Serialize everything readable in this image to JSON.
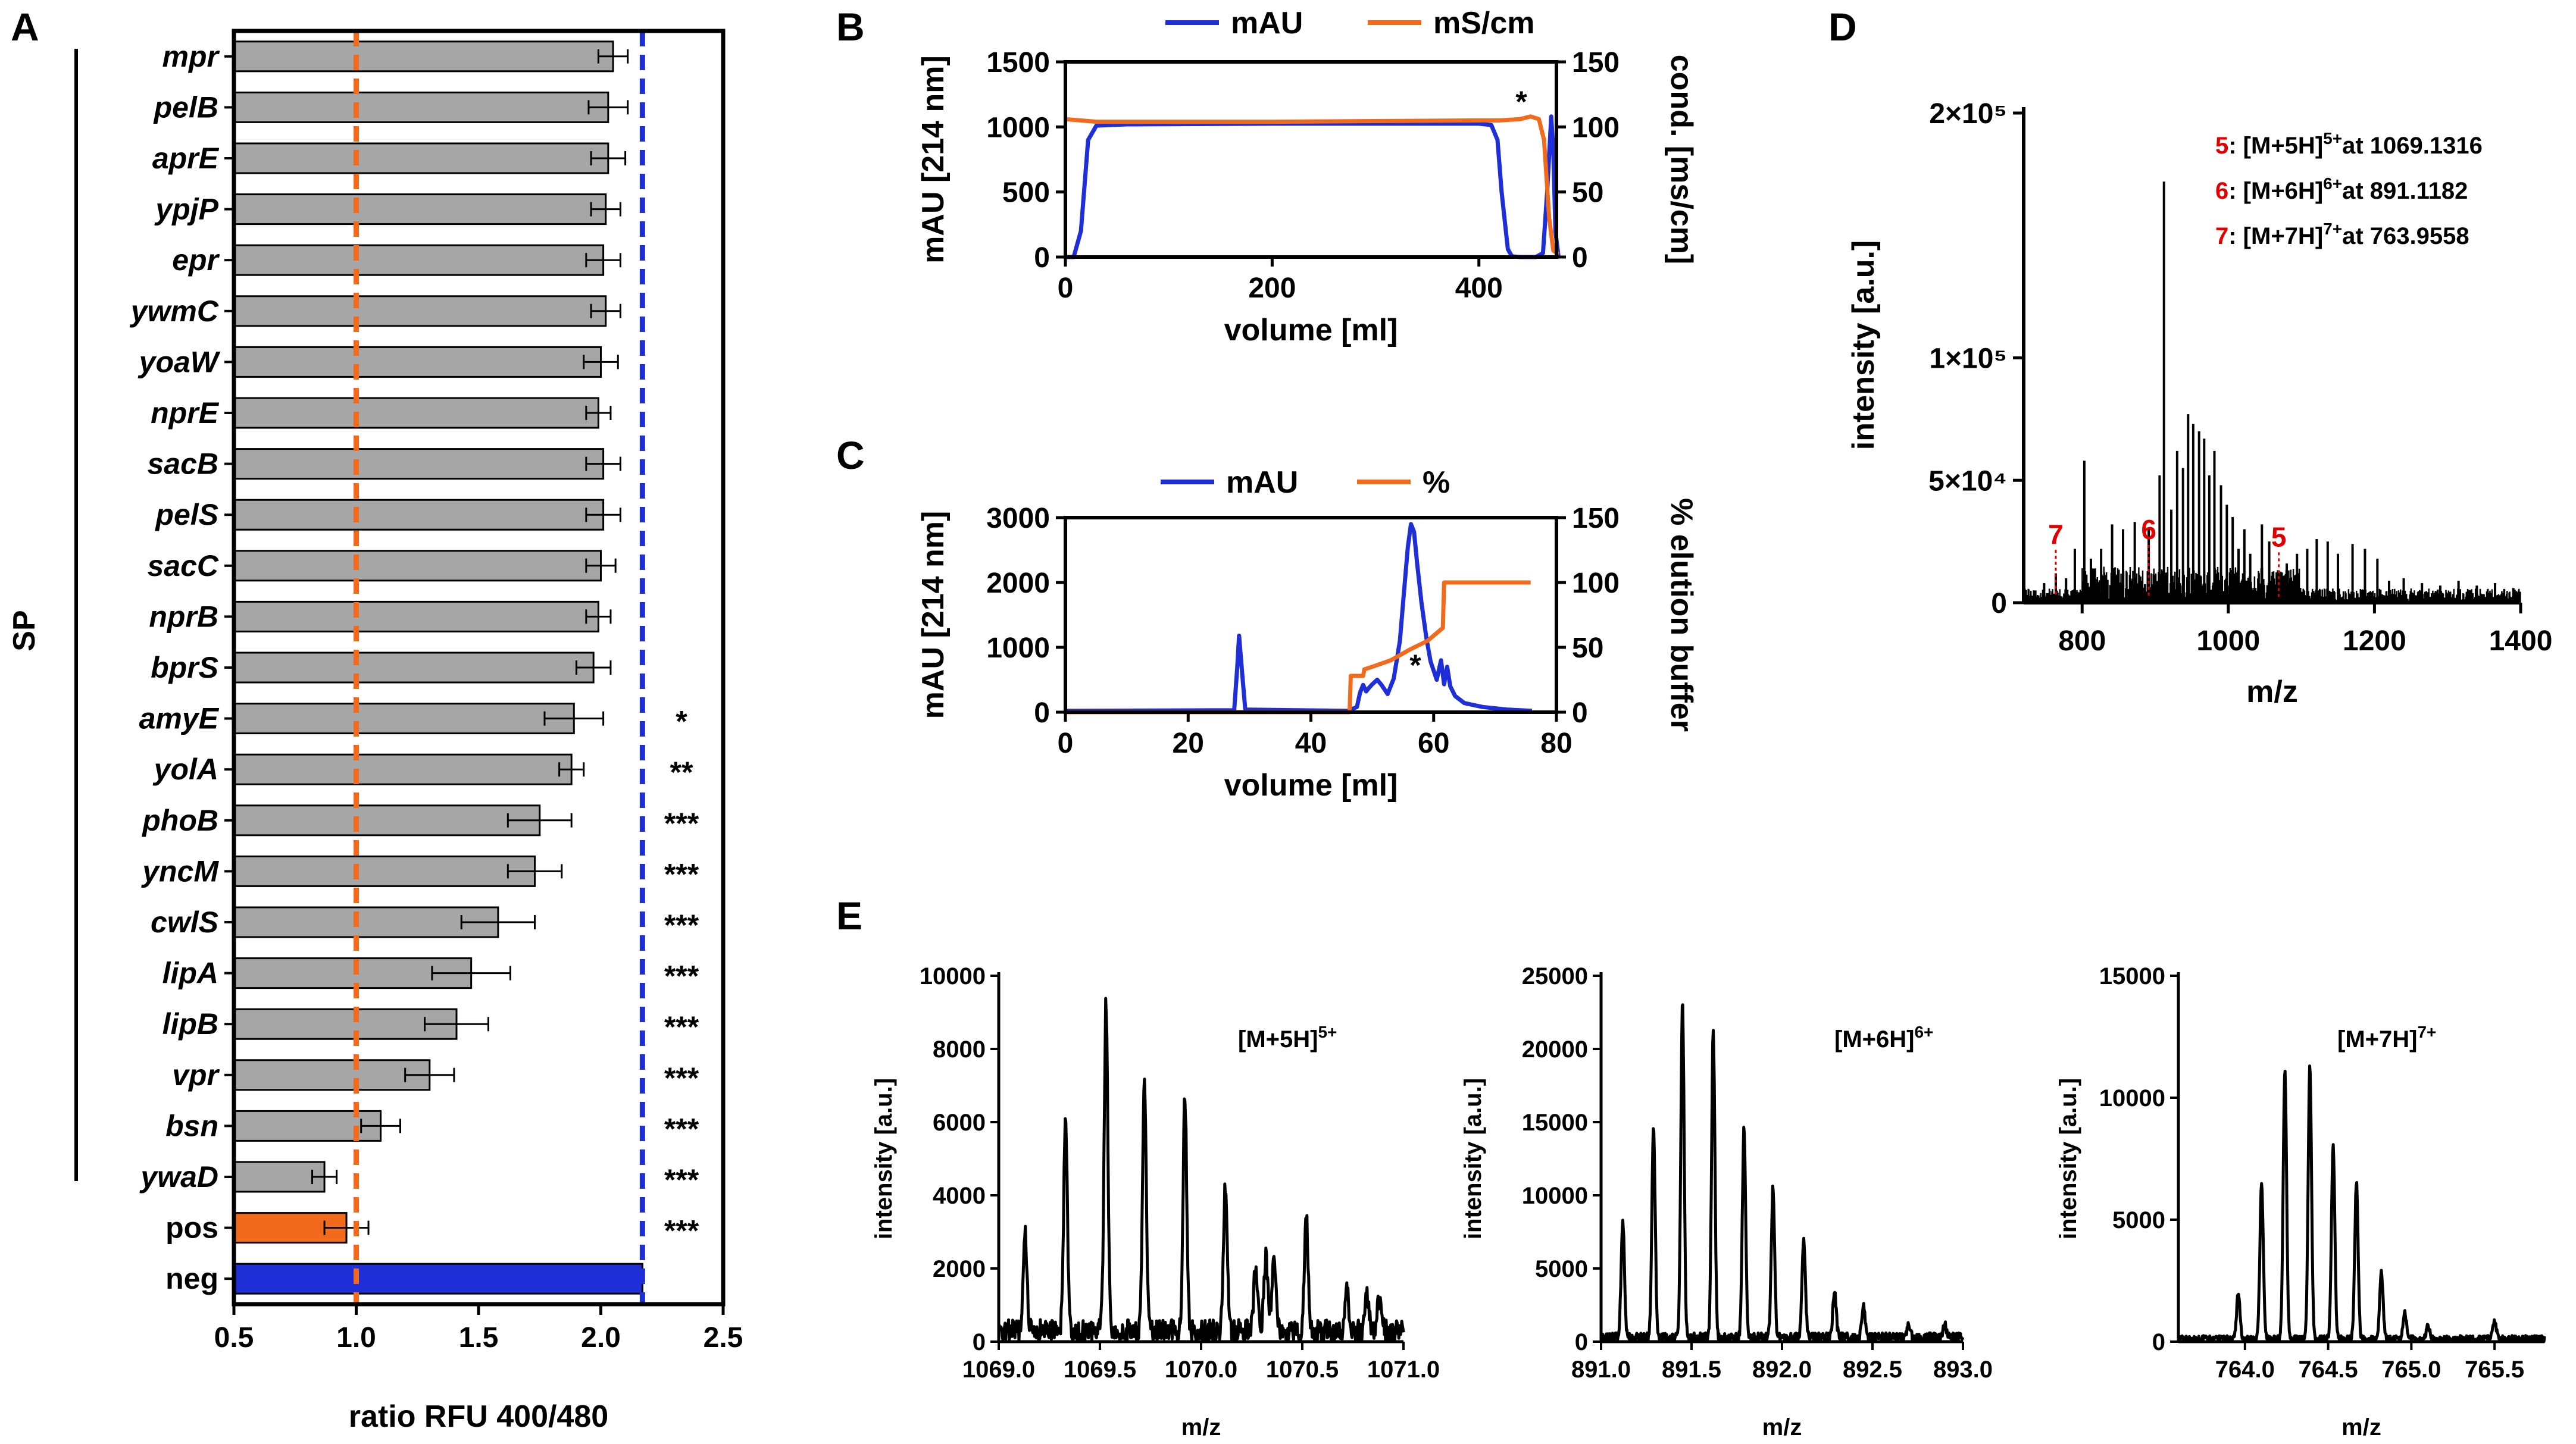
{
  "colors": {
    "grey": "#a6a6a6",
    "orange": "#f26b1d",
    "blue": "#1f2fd8",
    "red": "#e00000",
    "black": "#000000"
  },
  "panel_labels": [
    "A",
    "B",
    "C",
    "D",
    "E"
  ],
  "chart_data": [
    {
      "id": "A",
      "type": "bar",
      "orientation": "horizontal",
      "group_label": "SP",
      "xlabel": "ratio RFU 400/480",
      "xlim": [
        0.5,
        2.5
      ],
      "xticks": [
        "0.5",
        "1.0",
        "1.5",
        "2.0",
        "2.5"
      ],
      "categories": [
        "mpr",
        "pelB",
        "aprE",
        "ypjP",
        "epr",
        "ywmC",
        "yoaW",
        "nprE",
        "sacB",
        "pelS",
        "sacC",
        "nprB",
        "bprS",
        "amyE",
        "yolA",
        "phoB",
        "yncM",
        "cwlS",
        "lipA",
        "lipB",
        "vpr",
        "bsn",
        "ywaD",
        "pos",
        "neg"
      ],
      "values": [
        2.05,
        2.03,
        2.03,
        2.02,
        2.01,
        2.02,
        2.0,
        1.99,
        2.01,
        2.01,
        2.0,
        1.99,
        1.97,
        1.89,
        1.88,
        1.75,
        1.73,
        1.58,
        1.47,
        1.41,
        1.3,
        1.1,
        0.87,
        0.96,
        2.17
      ],
      "errors": [
        0.06,
        0.08,
        0.07,
        0.06,
        0.07,
        0.06,
        0.07,
        0.05,
        0.07,
        0.07,
        0.06,
        0.05,
        0.07,
        0.12,
        0.05,
        0.13,
        0.11,
        0.15,
        0.16,
        0.13,
        0.1,
        0.08,
        0.05,
        0.09,
        0.0
      ],
      "significance": [
        "",
        "",
        "",
        "",
        "",
        "",
        "",
        "",
        "",
        "",
        "",
        "",
        "",
        "*",
        "**",
        "***",
        "***",
        "***",
        "***",
        "***",
        "***",
        "***",
        "***",
        "***",
        ""
      ],
      "bar_colors": {
        "default": "grey",
        "pos": "orange",
        "neg": "blue"
      },
      "reference_lines": [
        {
          "value": 1.0,
          "color": "orange",
          "style": "dashed"
        },
        {
          "value": 2.17,
          "color": "blue",
          "style": "dashed"
        }
      ]
    },
    {
      "id": "B",
      "type": "line",
      "xlabel": "volume [ml]",
      "ylabel": "mAU [214 nm]",
      "y2label": "cond. [ms/cm]",
      "xlim": [
        0,
        475
      ],
      "ylim": [
        0,
        1500
      ],
      "y2lim": [
        0,
        150
      ],
      "xticks": [
        "0",
        "200",
        "400"
      ],
      "yticks": [
        "0",
        "500",
        "1000",
        "1500"
      ],
      "y2ticks": [
        "0",
        "50",
        "100",
        "150"
      ],
      "annotation": "*",
      "series": [
        {
          "name": "mAU",
          "color": "blue",
          "axis": "left",
          "x": [
            0,
            8,
            15,
            22,
            30,
            60,
            200,
            400,
            412,
            418,
            422,
            428,
            432,
            440,
            455,
            462,
            466,
            470,
            472,
            474,
            477
          ],
          "y": [
            0,
            0,
            200,
            900,
            1010,
            1020,
            1025,
            1025,
            1015,
            900,
            500,
            60,
            5,
            0,
            0,
            30,
            500,
            1080,
            800,
            200,
            0
          ]
        },
        {
          "name": "mS/cm",
          "color": "orange",
          "axis": "right",
          "x": [
            0,
            30,
            200,
            400,
            420,
            440,
            450,
            458,
            463,
            468,
            472,
            477
          ],
          "y": [
            106,
            104,
            104,
            105,
            105,
            106,
            108,
            106,
            90,
            30,
            5,
            2
          ]
        }
      ]
    },
    {
      "id": "C",
      "type": "line",
      "xlabel": "volume [ml]",
      "ylabel": "mAU [214 nm]",
      "y2label": "% elution buffer",
      "xlim": [
        0,
        80
      ],
      "ylim": [
        0,
        3000
      ],
      "y2lim": [
        0,
        150
      ],
      "xticks": [
        "0",
        "20",
        "40",
        "60",
        "80"
      ],
      "yticks": [
        "0",
        "1000",
        "2000",
        "3000"
      ],
      "y2ticks": [
        "0",
        "50",
        "100",
        "150"
      ],
      "annotation": "*",
      "series": [
        {
          "name": "mAU",
          "color": "blue",
          "axis": "left",
          "x": [
            0,
            27.5,
            28,
            28.3,
            28.8,
            29.3,
            46,
            47.5,
            48,
            48.5,
            49,
            49.5,
            50,
            50.8,
            51.5,
            52.5,
            53.5,
            54.5,
            55.2,
            55.8,
            56.3,
            56.8,
            57.3,
            58,
            58.8,
            59.5,
            60.5,
            61.2,
            61.7,
            62.2,
            62.7,
            63.5,
            65,
            68,
            72,
            76
          ],
          "y": [
            20,
            30,
            700,
            1180,
            600,
            40,
            20,
            80,
            300,
            420,
            320,
            380,
            430,
            500,
            420,
            280,
            520,
            1100,
            1900,
            2550,
            2900,
            2780,
            2300,
            1700,
            1150,
            780,
            500,
            800,
            430,
            700,
            400,
            250,
            140,
            80,
            40,
            20
          ]
        },
        {
          "name": "%",
          "color": "orange",
          "axis": "right",
          "x": [
            0,
            46.3,
            46.5,
            48.5,
            48.7,
            50,
            53,
            56,
            59,
            61.5,
            61.7,
            68,
            75.8
          ],
          "y": [
            0,
            0,
            28,
            28,
            33,
            35,
            40,
            48,
            55,
            65,
            100,
            100,
            100
          ]
        }
      ]
    },
    {
      "id": "D",
      "type": "line",
      "xlabel": "m/z",
      "ylabel": "intensity [a.u.]",
      "xlim": [
        720,
        1400
      ],
      "ylim": [
        0,
        200000
      ],
      "xticks": [
        "800",
        "1000",
        "1200",
        "1400"
      ],
      "yticks": [
        "0",
        "5×10⁴",
        "1×10⁵",
        "2×10⁵"
      ],
      "peaks": {
        "mz": [
          736,
          748,
          763.96,
          778,
          790,
          803,
          812,
          826,
          841,
          856,
          872,
          891.12,
          906,
          912,
          922,
          930,
          938,
          945,
          952,
          960,
          967,
          974,
          981,
          990,
          998,
          1006,
          1014,
          1022,
          1030,
          1046,
          1056,
          1069.13,
          1080,
          1094,
          1108,
          1121,
          1136,
          1150,
          1170,
          1187,
          1204,
          1220,
          1240,
          1265,
          1290,
          1315,
          1340,
          1365,
          1390
        ],
        "intensity": [
          5000,
          8000,
          12000,
          10000,
          22000,
          58000,
          18000,
          22000,
          32000,
          30000,
          33000,
          30000,
          52000,
          172000,
          38000,
          62000,
          55000,
          77000,
          73000,
          70000,
          67000,
          52000,
          62000,
          48000,
          40000,
          35000,
          22000,
          30000,
          20000,
          32000,
          25000,
          13000,
          16000,
          20000,
          22000,
          26000,
          25000,
          20000,
          24000,
          22000,
          18000,
          9000,
          10000,
          8000,
          7000,
          9000,
          7000,
          8000,
          6000
        ]
      },
      "peak_labels": [
        {
          "mz": 763.96,
          "label": "7"
        },
        {
          "mz": 891.12,
          "label": "6"
        },
        {
          "mz": 1069.13,
          "label": "5"
        }
      ],
      "legend": [
        {
          "num": "5",
          "ion": ": [M+5H]",
          "charge": "5+",
          "text": "at 1069.1316"
        },
        {
          "num": "6",
          "ion": ": [M+6H]",
          "charge": "6+",
          "text": "at 891.1182"
        },
        {
          "num": "7",
          "ion": ": [M+7H]",
          "charge": "7+",
          "text": "at 763.9558"
        }
      ]
    },
    {
      "id": "E1",
      "type": "line",
      "xlabel": "m/z",
      "ylabel": "intensity [a.u.]",
      "xlim": [
        1069.0,
        1071.0
      ],
      "ylim": [
        0,
        10000
      ],
      "xticks": [
        "1069.0",
        "1069.5",
        "1070.0",
        "1070.5",
        "1071.0"
      ],
      "yticks": [
        "0",
        "2000",
        "4000",
        "6000",
        "8000",
        "10000"
      ],
      "ion": "[M+5H]",
      "charge": "5+",
      "baseline": 600,
      "peaks": {
        "mz": [
          1069.13,
          1069.33,
          1069.53,
          1069.72,
          1069.92,
          1070.12,
          1070.27,
          1070.32,
          1070.36,
          1070.52,
          1070.72,
          1070.82,
          1070.88
        ],
        "intensity": [
          2700,
          5700,
          8900,
          6800,
          6400,
          3900,
          1800,
          2000,
          2000,
          3100,
          1100,
          1000,
          800
        ]
      }
    },
    {
      "id": "E2",
      "type": "line",
      "xlabel": "m/z",
      "ylabel": "intensity [a.u.]",
      "xlim": [
        891.0,
        893.0
      ],
      "ylim": [
        0,
        25000
      ],
      "xticks": [
        "891.0",
        "891.5",
        "892.0",
        "892.5",
        "893.0"
      ],
      "yticks": [
        "0",
        "5000",
        "10000",
        "15000",
        "20000",
        "25000"
      ],
      "ion": "[M+6H]",
      "charge": "6+",
      "baseline": 600,
      "peaks": {
        "mz": [
          891.12,
          891.29,
          891.45,
          891.62,
          891.79,
          891.95,
          892.12,
          892.29,
          892.45,
          892.7,
          892.9
        ],
        "intensity": [
          8000,
          14400,
          22700,
          20900,
          14400,
          10200,
          6800,
          3200,
          2200,
          900,
          800
        ]
      }
    },
    {
      "id": "E3",
      "type": "line",
      "xlabel": "m/z",
      "ylabel": "intensity [a.u.]",
      "xlim": [
        763.6,
        765.8
      ],
      "ylim": [
        0,
        15000
      ],
      "xticks": [
        "764.0",
        "764.5",
        "765.0",
        "765.5"
      ],
      "yticks": [
        "0",
        "5000",
        "10000",
        "15000"
      ],
      "ion": "[M+7H]",
      "charge": "7+",
      "baseline": 250,
      "peaks": {
        "mz": [
          763.96,
          764.1,
          764.24,
          764.39,
          764.53,
          764.67,
          764.82,
          764.96,
          765.1,
          765.5
        ],
        "intensity": [
          1900,
          6400,
          11000,
          11200,
          7900,
          6400,
          2700,
          1100,
          500,
          700
        ]
      }
    }
  ]
}
